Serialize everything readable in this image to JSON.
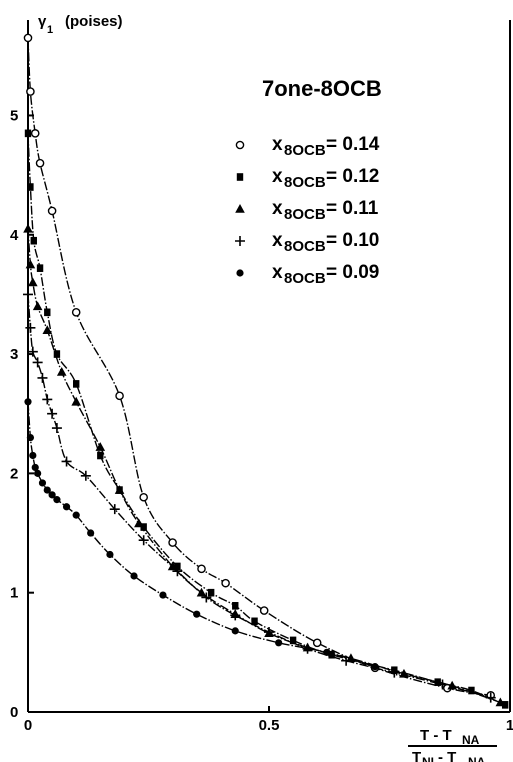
{
  "chart_data": {
    "type": "scatter",
    "title": "7one-8OCB",
    "ylabel": {
      "symbol": "γ",
      "subscript": "1",
      "unit": "(poises)"
    },
    "xlabel": {
      "numerator": "T - T",
      "numerator_sub": "NA",
      "denominator": "T",
      "denominator_sub1": "NI",
      "denominator_mid": " - T",
      "denominator_sub2": "NA"
    },
    "xlim": [
      0,
      1
    ],
    "ylim": [
      0,
      5.8
    ],
    "xticks": [
      0,
      0.5,
      1
    ],
    "yticks": [
      0,
      1,
      2,
      3,
      4,
      5
    ],
    "legend_position": "top-right",
    "series": [
      {
        "name": "x8OCB = 0.14",
        "label_prefix": "x",
        "label_sub": "8OCB",
        "label_value": "= 0.14",
        "marker": "open-circle",
        "x": [
          0.0,
          0.005,
          0.015,
          0.025,
          0.05,
          0.1,
          0.19,
          0.24,
          0.3,
          0.36,
          0.41,
          0.49,
          0.6,
          0.72,
          0.87,
          0.96
        ],
        "y": [
          5.65,
          5.2,
          4.85,
          4.6,
          4.2,
          3.35,
          2.65,
          1.8,
          1.42,
          1.2,
          1.08,
          0.85,
          0.58,
          0.37,
          0.2,
          0.14
        ]
      },
      {
        "name": "x8OCB = 0.12",
        "label_prefix": "x",
        "label_sub": "8OCB",
        "label_value": "= 0.12",
        "marker": "filled-square",
        "x": [
          0.0,
          0.005,
          0.012,
          0.025,
          0.04,
          0.06,
          0.1,
          0.15,
          0.19,
          0.24,
          0.31,
          0.38,
          0.43,
          0.47,
          0.55,
          0.63,
          0.76,
          0.85,
          0.92,
          0.99
        ],
        "y": [
          4.85,
          4.4,
          3.95,
          3.72,
          3.35,
          3.0,
          2.75,
          2.15,
          1.86,
          1.55,
          1.22,
          1.0,
          0.89,
          0.76,
          0.6,
          0.48,
          0.35,
          0.25,
          0.18,
          0.06
        ]
      },
      {
        "name": "x8OCB = 0.11",
        "label_prefix": "x",
        "label_sub": "8OCB",
        "label_value": "= 0.11",
        "marker": "filled-triangle",
        "x": [
          0.0,
          0.005,
          0.01,
          0.02,
          0.04,
          0.07,
          0.1,
          0.15,
          0.19,
          0.23,
          0.3,
          0.36,
          0.43,
          0.5,
          0.58,
          0.67,
          0.78,
          0.88,
          0.98
        ],
        "y": [
          4.05,
          3.75,
          3.6,
          3.4,
          3.2,
          2.85,
          2.6,
          2.22,
          1.86,
          1.58,
          1.22,
          1.0,
          0.82,
          0.66,
          0.54,
          0.45,
          0.32,
          0.22,
          0.08
        ]
      },
      {
        "name": "x8OCB = 0.10",
        "label_prefix": "x",
        "label_sub": "8OCB",
        "label_value": "= 0.10",
        "marker": "plus",
        "x": [
          0.0,
          0.005,
          0.01,
          0.02,
          0.03,
          0.04,
          0.05,
          0.06,
          0.08,
          0.12,
          0.18,
          0.24,
          0.31,
          0.37,
          0.43,
          0.5,
          0.58,
          0.66,
          0.76,
          0.86,
          0.96
        ],
        "y": [
          3.5,
          3.22,
          3.02,
          2.93,
          2.8,
          2.62,
          2.5,
          2.38,
          2.1,
          1.98,
          1.7,
          1.44,
          1.18,
          0.96,
          0.81,
          0.67,
          0.53,
          0.43,
          0.33,
          0.23,
          0.12
        ]
      },
      {
        "name": "x8OCB = 0.09",
        "label_prefix": "x",
        "label_sub": "8OCB",
        "label_value": "= 0.09",
        "marker": "filled-circle",
        "x": [
          0.0,
          0.005,
          0.01,
          0.015,
          0.02,
          0.03,
          0.04,
          0.05,
          0.06,
          0.08,
          0.1,
          0.13,
          0.17,
          0.22,
          0.28,
          0.35,
          0.43,
          0.52,
          0.62,
          0.72
        ],
        "y": [
          2.6,
          2.3,
          2.15,
          2.05,
          2.0,
          1.92,
          1.86,
          1.82,
          1.78,
          1.72,
          1.65,
          1.5,
          1.32,
          1.14,
          0.98,
          0.82,
          0.68,
          0.58,
          0.5,
          0.38
        ]
      }
    ]
  }
}
